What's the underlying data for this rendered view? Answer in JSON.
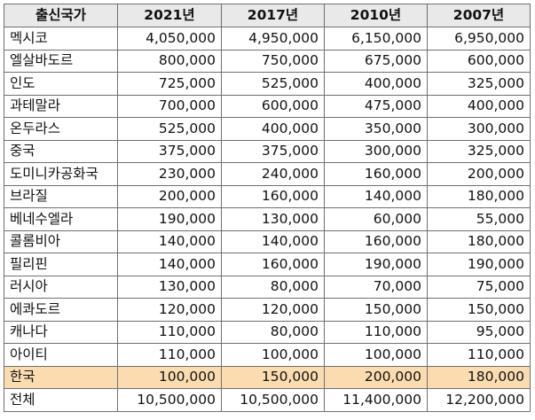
{
  "table": {
    "headers": [
      "출신국가",
      "2021년",
      "2017년",
      "2010년",
      "2007년"
    ],
    "rows": [
      {
        "country": "멕시코",
        "values": [
          "4,050,000",
          "4,950,000",
          "6,150,000",
          "6,950,000"
        ]
      },
      {
        "country": "엘살바도르",
        "values": [
          "800,000",
          "750,000",
          "675,000",
          "600,000"
        ]
      },
      {
        "country": "인도",
        "values": [
          "725,000",
          "525,000",
          "400,000",
          "325,000"
        ]
      },
      {
        "country": "과테말라",
        "values": [
          "700,000",
          "600,000",
          "475,000",
          "400,000"
        ]
      },
      {
        "country": "온두라스",
        "values": [
          "525,000",
          "400,000",
          "350,000",
          "300,000"
        ]
      },
      {
        "country": "중국",
        "values": [
          "375,000",
          "375,000",
          "300,000",
          "325,000"
        ]
      },
      {
        "country": "도미니카공화국",
        "values": [
          "230,000",
          "240,000",
          "160,000",
          "200,000"
        ]
      },
      {
        "country": "브라질",
        "values": [
          "200,000",
          "160,000",
          "140,000",
          "180,000"
        ]
      },
      {
        "country": "베네수엘라",
        "values": [
          "190,000",
          "130,000",
          "60,000",
          "55,000"
        ]
      },
      {
        "country": "콜롬비아",
        "values": [
          "140,000",
          "140,000",
          "160,000",
          "180,000"
        ]
      },
      {
        "country": "필리핀",
        "values": [
          "140,000",
          "160,000",
          "190,000",
          "190,000"
        ]
      },
      {
        "country": "러시아",
        "values": [
          "130,000",
          "80,000",
          "70,000",
          "75,000"
        ]
      },
      {
        "country": "에콰도르",
        "values": [
          "120,000",
          "120,000",
          "150,000",
          "150,000"
        ]
      },
      {
        "country": "캐나다",
        "values": [
          "110,000",
          "80,000",
          "110,000",
          "95,000"
        ]
      },
      {
        "country": "아이티",
        "values": [
          "110,000",
          "100,000",
          "100,000",
          "110,000"
        ]
      },
      {
        "country": "한국",
        "values": [
          "100,000",
          "150,000",
          "200,000",
          "180,000"
        ],
        "highlight": true
      },
      {
        "country": "전체",
        "values": [
          "10,500,000",
          "10,500,000",
          "11,400,000",
          "12,200,000"
        ]
      }
    ]
  },
  "colors": {
    "header_background": "#e9e9e9",
    "highlight_row": "#fbdcb0",
    "border": "#6f6f6f"
  }
}
